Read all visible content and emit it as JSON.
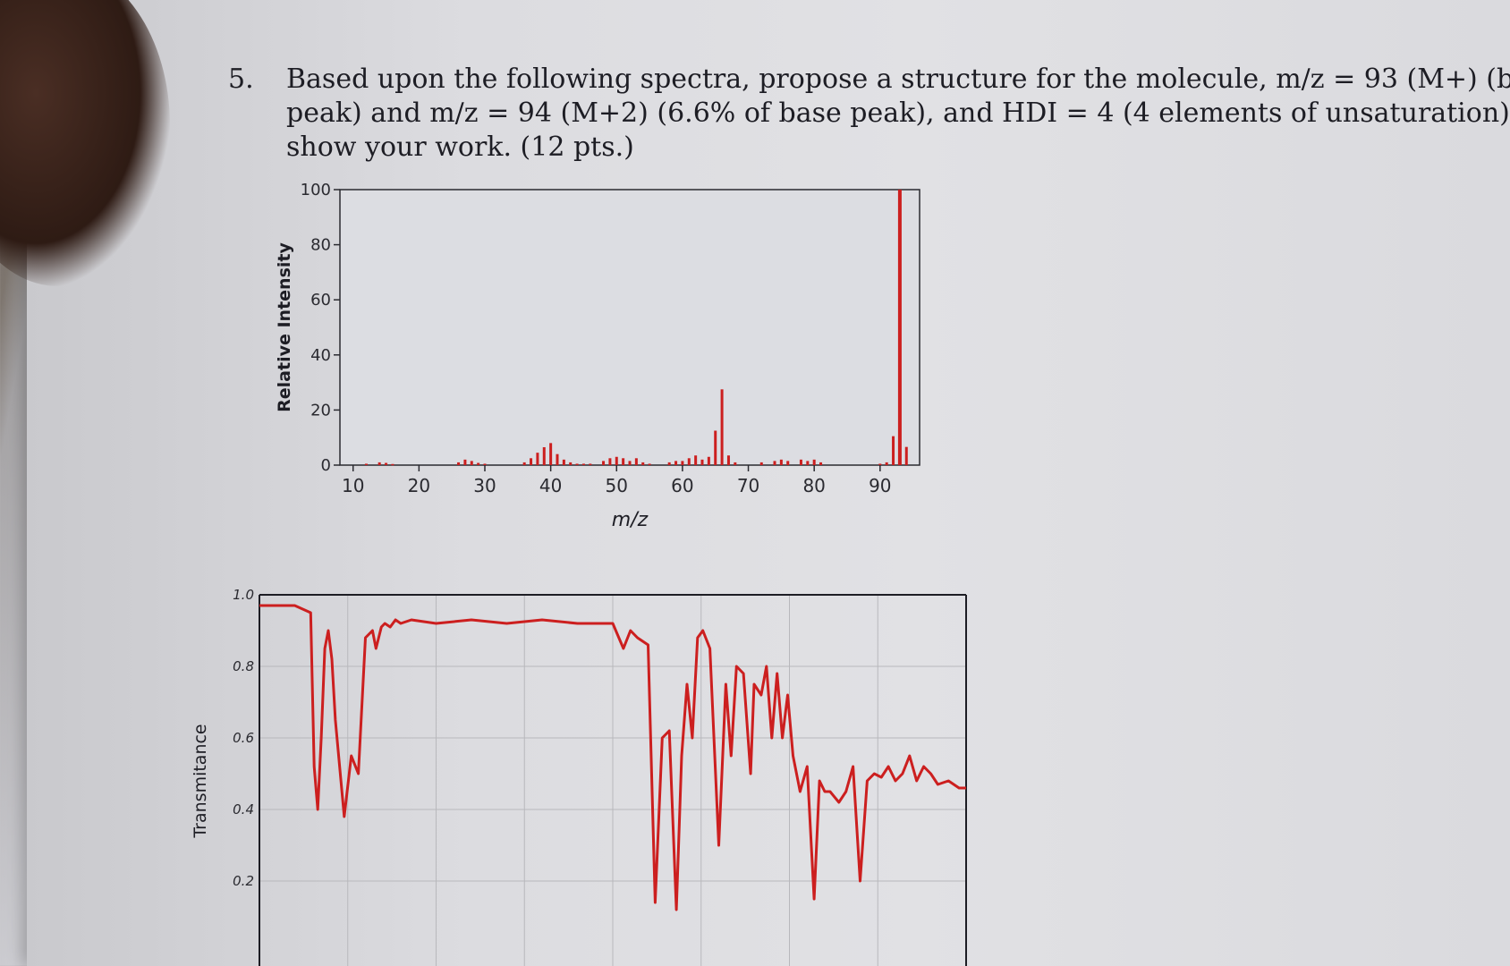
{
  "question": {
    "number": "5.",
    "lines": [
      "Based upon the following spectra, propose a structure for the molecule, m/z = 93 (M+) (base",
      "peak) and m/z = 94 (M+2) (6.6% of base peak), and HDI = 4 (4 elements of unsaturation) –",
      "show your work. (12 pts.)"
    ]
  },
  "chart_data": [
    {
      "type": "bar",
      "title": "",
      "xlabel": "m/z",
      "ylabel": "Relative Intensity",
      "xlim": [
        8,
        96
      ],
      "ylim": [
        0,
        100
      ],
      "x_ticks": [
        10,
        20,
        30,
        40,
        50,
        60,
        70,
        80,
        90
      ],
      "y_ticks": [
        0,
        20,
        40,
        60,
        80,
        100
      ],
      "grid": false,
      "colors": {
        "bars": "#cc1f1f",
        "plot_bg": "#dcdde2"
      },
      "x": [
        12,
        14,
        15,
        16,
        26,
        27,
        28,
        29,
        30,
        36,
        37,
        38,
        39,
        40,
        41,
        42,
        43,
        44,
        45,
        46,
        48,
        49,
        50,
        51,
        52,
        53,
        54,
        55,
        58,
        59,
        60,
        61,
        62,
        63,
        64,
        65,
        66,
        67,
        68,
        72,
        74,
        75,
        76,
        78,
        79,
        80,
        81,
        90,
        91,
        92,
        93,
        94
      ],
      "values": [
        0.5,
        1.0,
        0.8,
        0.4,
        1.0,
        2.0,
        1.5,
        0.8,
        0.5,
        1.0,
        2.5,
        4.5,
        6.5,
        8.0,
        4.0,
        2.0,
        1.0,
        0.5,
        0.5,
        0.5,
        1.5,
        2.5,
        3.0,
        2.5,
        1.5,
        2.5,
        1.0,
        0.5,
        1.0,
        1.5,
        1.5,
        2.5,
        3.5,
        2.0,
        3.0,
        12.5,
        27.5,
        3.5,
        1.0,
        1.0,
        1.5,
        2.0,
        1.5,
        2.0,
        1.5,
        2.0,
        1.0,
        0.5,
        1.0,
        10.5,
        100,
        6.6
      ]
    },
    {
      "type": "line",
      "title": "",
      "xlabel": "",
      "ylabel": "Transmitance",
      "ylim": [
        0.15,
        1.0
      ],
      "y_ticks": [
        0.2,
        0.4,
        0.6,
        0.8,
        1.0
      ],
      "grid": true,
      "colors": {
        "line": "#cc1f1f",
        "grid": "#b8b8bc"
      },
      "x": [
        0,
        0.5,
        1.0,
        1.45,
        1.55,
        1.65,
        1.75,
        1.85,
        1.95,
        2.05,
        2.15,
        2.4,
        2.6,
        2.8,
        3.0,
        3.2,
        3.3,
        3.45,
        3.55,
        3.7,
        3.85,
        4.0,
        4.3,
        5.0,
        6.0,
        7.0,
        8.0,
        9.0,
        10.0,
        10.3,
        10.5,
        10.7,
        11.0,
        11.2,
        11.4,
        11.6,
        11.8,
        11.95,
        12.1,
        12.25,
        12.4,
        12.55,
        12.75,
        13.0,
        13.2,
        13.35,
        13.5,
        13.7,
        13.9,
        14.0,
        14.2,
        14.35,
        14.5,
        14.65,
        14.8,
        14.95,
        15.1,
        15.3,
        15.5,
        15.7,
        15.85,
        16.0,
        16.15,
        16.4,
        16.6,
        16.8,
        17.0,
        17.2,
        17.4,
        17.6,
        17.8,
        18.0,
        18.2,
        18.4,
        18.6,
        18.8,
        19.0,
        19.2,
        19.5,
        19.8,
        20.0
      ],
      "y": [
        0.97,
        0.97,
        0.97,
        0.95,
        0.52,
        0.4,
        0.6,
        0.85,
        0.9,
        0.82,
        0.65,
        0.38,
        0.55,
        0.5,
        0.88,
        0.9,
        0.85,
        0.91,
        0.92,
        0.91,
        0.93,
        0.92,
        0.93,
        0.92,
        0.93,
        0.92,
        0.93,
        0.92,
        0.92,
        0.85,
        0.9,
        0.88,
        0.86,
        0.14,
        0.6,
        0.62,
        0.12,
        0.55,
        0.75,
        0.6,
        0.88,
        0.9,
        0.85,
        0.3,
        0.75,
        0.55,
        0.8,
        0.78,
        0.5,
        0.75,
        0.72,
        0.8,
        0.6,
        0.78,
        0.6,
        0.72,
        0.55,
        0.45,
        0.52,
        0.15,
        0.48,
        0.45,
        0.45,
        0.42,
        0.45,
        0.52,
        0.2,
        0.48,
        0.5,
        0.49,
        0.52,
        0.48,
        0.5,
        0.55,
        0.48,
        0.52,
        0.5,
        0.47,
        0.48,
        0.46,
        0.46
      ]
    }
  ]
}
